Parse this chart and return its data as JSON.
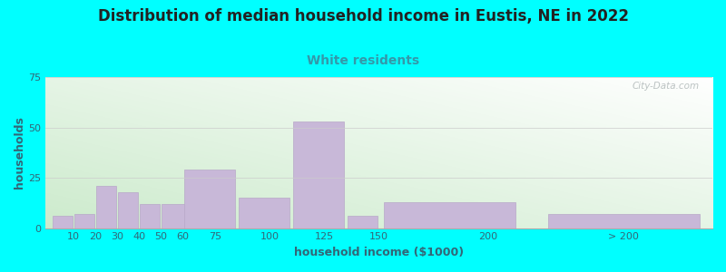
{
  "title": "Distribution of median household income in Eustis, NE in 2022",
  "subtitle": "White residents",
  "xlabel": "household income ($1000)",
  "ylabel": "households",
  "background_color": "#00FFFF",
  "plot_bg_topleft": "#d4ecd4",
  "plot_bg_topright": "#ffffff",
  "plot_bg_bottomleft": "#c8e8c8",
  "plot_bg_bottomright": "#e8f0e8",
  "bar_color": "#c8b8d8",
  "bar_edge_color": "#b8a8c8",
  "title_fontsize": 12,
  "subtitle_fontsize": 10,
  "subtitle_color": "#3399aa",
  "ylabel_color": "#336677",
  "xlabel_color": "#336677",
  "tick_color": "#336677",
  "ylim": [
    0,
    75
  ],
  "yticks": [
    0,
    25,
    50,
    75
  ],
  "bar_heights": [
    6,
    7,
    21,
    18,
    12,
    12,
    29,
    15,
    53,
    6,
    13,
    7
  ],
  "bar_widths": [
    10,
    10,
    10,
    10,
    10,
    15,
    25,
    25,
    25,
    15,
    65,
    75
  ],
  "bar_lefts": [
    0,
    10,
    20,
    30,
    40,
    50,
    60,
    85,
    110,
    135,
    150,
    225
  ],
  "xtick_positions": [
    10,
    20,
    30,
    40,
    50,
    60,
    75,
    100,
    125,
    150,
    200,
    262
  ],
  "xtick_labels": [
    "10",
    "20",
    "30",
    "40",
    "50",
    "60",
    "75",
    "100",
    "125",
    "150",
    "200",
    "> 200"
  ],
  "watermark": "City-Data.com"
}
